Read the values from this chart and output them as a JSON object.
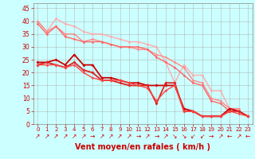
{
  "background_color": "#ccffff",
  "grid_color": "#aaaaaa",
  "xlabel": "Vent moyen/en rafales ( km/h )",
  "xlabel_color": "#cc0000",
  "xlabel_fontsize": 7,
  "ylabel_ticks": [
    0,
    5,
    10,
    15,
    20,
    25,
    30,
    35,
    40,
    45
  ],
  "xlim": [
    -0.5,
    23.5
  ],
  "ylim": [
    0,
    47
  ],
  "xticks": [
    0,
    1,
    2,
    3,
    4,
    5,
    6,
    7,
    8,
    9,
    10,
    11,
    12,
    13,
    14,
    15,
    16,
    17,
    18,
    19,
    20,
    21,
    22,
    23
  ],
  "series": [
    {
      "x": [
        0,
        1,
        2,
        3,
        4,
        5,
        6,
        7,
        8,
        9,
        10,
        11,
        12,
        13,
        14,
        15,
        16,
        17,
        18,
        19,
        20,
        21,
        22
      ],
      "y": [
        40,
        36,
        41,
        39,
        38,
        36,
        35,
        35,
        34,
        33,
        32,
        32,
        31,
        30,
        24,
        16,
        23,
        19,
        19,
        13,
        13,
        6,
        6
      ],
      "color": "#ffaaaa",
      "linewidth": 1.0,
      "marker": "o",
      "markersize": 2.0
    },
    {
      "x": [
        0,
        1,
        2,
        3,
        4,
        5,
        6,
        7,
        8,
        9,
        10,
        11,
        12,
        13,
        14,
        15,
        16,
        17,
        18,
        19,
        20,
        21,
        22
      ],
      "y": [
        40,
        36,
        38,
        35,
        35,
        32,
        33,
        32,
        31,
        30,
        30,
        29,
        29,
        27,
        26,
        24,
        22,
        17,
        16,
        10,
        9,
        6,
        6
      ],
      "color": "#ff8888",
      "linewidth": 1.0,
      "marker": "o",
      "markersize": 2.0
    },
    {
      "x": [
        0,
        1,
        2,
        3,
        4,
        5,
        6,
        7,
        8,
        9,
        10,
        11,
        12,
        13,
        14,
        15,
        16,
        17,
        18,
        19,
        20,
        21,
        22
      ],
      "y": [
        39,
        35,
        38,
        34,
        33,
        32,
        32,
        32,
        31,
        30,
        30,
        30,
        29,
        26,
        24,
        22,
        19,
        16,
        15,
        9,
        8,
        5,
        5
      ],
      "color": "#ff6666",
      "linewidth": 1.0,
      "marker": "o",
      "markersize": 2.0
    },
    {
      "x": [
        0,
        1,
        2,
        3,
        4,
        5,
        6,
        7,
        8,
        9,
        10,
        11,
        12,
        13,
        14,
        15,
        16,
        17,
        18,
        19,
        20,
        21,
        22,
        23
      ],
      "y": [
        24,
        24,
        25,
        23,
        27,
        23,
        23,
        18,
        18,
        17,
        16,
        16,
        15,
        15,
        15,
        15,
        6,
        5,
        3,
        3,
        3,
        6,
        5,
        3
      ],
      "color": "#cc0000",
      "linewidth": 1.3,
      "marker": "D",
      "markersize": 2.0
    },
    {
      "x": [
        0,
        1,
        2,
        3,
        4,
        5,
        6,
        7,
        8,
        9,
        10,
        11,
        12,
        13,
        14,
        15,
        16,
        17,
        18,
        19,
        20,
        21,
        22,
        23
      ],
      "y": [
        23,
        24,
        23,
        22,
        24,
        21,
        20,
        17,
        17,
        16,
        15,
        15,
        15,
        8,
        16,
        16,
        5,
        5,
        3,
        3,
        3,
        5,
        5,
        3
      ],
      "color": "#dd2222",
      "linewidth": 1.3,
      "marker": "D",
      "markersize": 2.0
    },
    {
      "x": [
        0,
        1,
        2,
        3,
        4,
        5,
        6,
        7,
        8,
        9,
        10,
        11,
        12,
        13,
        14,
        15,
        16,
        17,
        18,
        19,
        20,
        21,
        22,
        23
      ],
      "y": [
        23,
        23,
        23,
        22,
        23,
        20,
        18,
        17,
        17,
        17,
        16,
        15,
        14,
        9,
        13,
        15,
        5,
        5,
        3,
        3,
        3,
        5,
        4,
        3
      ],
      "color": "#ff4444",
      "linewidth": 1.0,
      "marker": "D",
      "markersize": 1.8
    }
  ],
  "wind_arrows": {
    "directions": [
      "↗",
      "↗",
      "↗",
      "↗",
      "↗",
      "↗",
      "→",
      "↗",
      "↗",
      "↗",
      "↗",
      "→",
      "↗",
      "→",
      "↗",
      "↘",
      "↘",
      "↙",
      "↙",
      "→",
      "↗",
      "←",
      "↗",
      "←"
    ],
    "color": "#cc0000",
    "fontsize": 5.5
  }
}
